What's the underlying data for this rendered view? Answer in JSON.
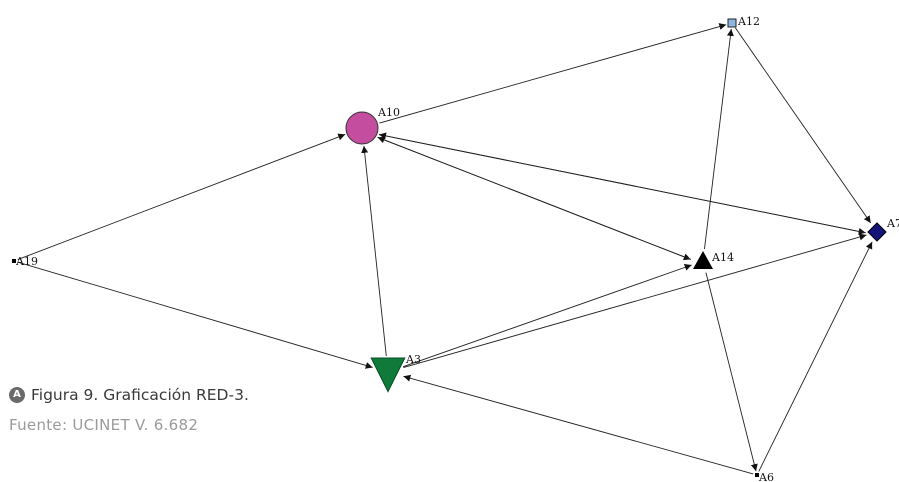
{
  "figure": {
    "icon_letter": "A",
    "caption": "Figura 9. Graficación RED-3.",
    "source": "Fuente: UCINET V. 6.682"
  },
  "graph": {
    "nodes": [
      {
        "id": "A10",
        "label": "A10",
        "shape": "circle",
        "color": "#c44da0"
      },
      {
        "id": "A12",
        "label": "A12",
        "shape": "square",
        "color": "#8fb8e0"
      },
      {
        "id": "A7",
        "label": "A7",
        "shape": "diamond",
        "color": "#13137a"
      },
      {
        "id": "A14",
        "label": "A14",
        "shape": "triangle-up",
        "color": "#000000"
      },
      {
        "id": "A3",
        "label": "A3",
        "shape": "triangle-down",
        "color": "#0f7a3a"
      },
      {
        "id": "A19",
        "label": "A19",
        "shape": "dot",
        "color": "#000000"
      },
      {
        "id": "A6",
        "label": "A6",
        "shape": "dot",
        "color": "#000000"
      }
    ],
    "edges": [
      {
        "from": "A19",
        "to": "A10"
      },
      {
        "from": "A19",
        "to": "A3"
      },
      {
        "from": "A3",
        "to": "A10"
      },
      {
        "from": "A10",
        "to": "A12"
      },
      {
        "from": "A10",
        "to": "A14"
      },
      {
        "from": "A14",
        "to": "A10"
      },
      {
        "from": "A10",
        "to": "A7"
      },
      {
        "from": "A7",
        "to": "A10"
      },
      {
        "from": "A3",
        "to": "A14"
      },
      {
        "from": "A3",
        "to": "A7"
      },
      {
        "from": "A14",
        "to": "A12"
      },
      {
        "from": "A12",
        "to": "A7"
      },
      {
        "from": "A14",
        "to": "A6"
      },
      {
        "from": "A6",
        "to": "A3"
      },
      {
        "from": "A6",
        "to": "A7"
      }
    ]
  }
}
